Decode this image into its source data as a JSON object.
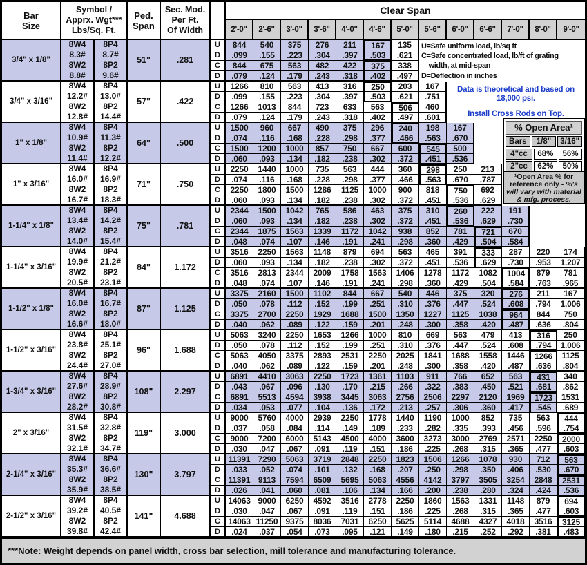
{
  "header": {
    "bar_size": "Bar\nSize",
    "symbol": "Symbol /\nApprx. Wgt***\nLbs/Sq. Ft.",
    "ped_span": "Ped.\nSpan",
    "sec_mod": "Sec. Mod.\nPer Ft.\nOf Width",
    "clear_span": "Clear Span",
    "spans": [
      "2'-0\"",
      "2'-6\"",
      "3'-0\"",
      "3'-6\"",
      "4'-0\"",
      "4'-6\"",
      "5'-0\"",
      "5'-6\"",
      "6'-0\"",
      "6'-6\"",
      "7'-0\"",
      "8'-0\"",
      "9'-0\""
    ]
  },
  "legend": {
    "text": "U=Safe uniform load, lb/sq ft\nC=Safe concentrated load, lb/ft of grating\n    width, at mid-span\nD=Deflection in inches"
  },
  "notes": {
    "line1": "Data is theoretical and based on\n18,000 psi.",
    "line2": "Install Cross Rods on Top."
  },
  "open_area": {
    "title": "% Open Area¹",
    "col_headers": [
      "Bars",
      "1/8\"",
      "3/16\""
    ],
    "rows": [
      [
        "4\"cc",
        "68%",
        "56%"
      ],
      [
        "2\"cc",
        "62%",
        "50%"
      ]
    ],
    "footnote_normal": "¹Open Area % for reference only - ",
    "footnote_italic": "%'s will vary with material & mfg. process."
  },
  "footer_note": "***Note: Weight depends on panel width, cross bar selection, mill tolerance and manufacturing tolerance.",
  "row_labels": [
    "U",
    "D",
    "C",
    "D"
  ],
  "colors": {
    "lavender": "#c6cae8",
    "header_gray": "#d2d2d2",
    "note_blue": "#1c3ecb",
    "grid_black": "#000000"
  },
  "blocks": [
    {
      "bar_size": "3/4\" x 1/8\"",
      "sym_w": [
        "8W4",
        "8.3#",
        "8W2",
        "8.8#"
      ],
      "sym_p": [
        "8P4",
        "8.7#",
        "8P2",
        "9.6#"
      ],
      "ped_span": "51\"",
      "sec_mod": ".281",
      "shaded": true,
      "heavy_ud": 5,
      "heavy_cd": 5,
      "white_from": 6,
      "rows": {
        "u": [
          "844",
          "540",
          "375",
          "276",
          "211",
          "167",
          "135"
        ],
        "d1": [
          ".099",
          ".155",
          ".223",
          ".304",
          ".397",
          ".503",
          ".621"
        ],
        "c": [
          "844",
          "675",
          "563",
          "482",
          "422",
          "375",
          "338"
        ],
        "d2": [
          ".079",
          ".124",
          ".179",
          ".243",
          ".318",
          ".402",
          ".497"
        ]
      }
    },
    {
      "bar_size": "3/4\" x 3/16\"",
      "sym_w": [
        "8W4",
        "12.2#",
        "8W2",
        "12.8#"
      ],
      "sym_p": [
        "8P4",
        "13.0#",
        "8P2",
        "14.4#"
      ],
      "ped_span": "57\"",
      "sec_mod": ".422",
      "shaded": false,
      "heavy_ud": 5,
      "heavy_cd": 6,
      "rows": {
        "u": [
          "1266",
          "810",
          "563",
          "413",
          "316",
          "250",
          "203",
          "167"
        ],
        "d1": [
          ".099",
          ".155",
          ".223",
          ".304",
          ".397",
          ".503",
          ".621",
          ".751"
        ],
        "c": [
          "1266",
          "1013",
          "844",
          "723",
          "633",
          "563",
          "506",
          "460"
        ],
        "d2": [
          ".079",
          ".124",
          ".179",
          ".243",
          ".318",
          ".402",
          ".497",
          ".601"
        ]
      }
    },
    {
      "bar_size": "1\" x 1/8\"",
      "sym_w": [
        "8W4",
        "10.9#",
        "8W2",
        "11.4#"
      ],
      "sym_p": [
        "8P4",
        "11.3#",
        "8P2",
        "12.2#"
      ],
      "ped_span": "64\"",
      "sec_mod": ".500",
      "shaded": true,
      "heavy_ud": 6,
      "heavy_cd": 7,
      "rows": {
        "u": [
          "1500",
          "960",
          "667",
          "490",
          "375",
          "296",
          "240",
          "198",
          "167"
        ],
        "d1": [
          ".074",
          ".116",
          ".168",
          ".228",
          ".298",
          ".377",
          ".466",
          ".563",
          ".670"
        ],
        "c": [
          "1500",
          "1200",
          "1000",
          "857",
          "750",
          "667",
          "600",
          "545",
          "500"
        ],
        "d2": [
          ".060",
          ".093",
          ".134",
          ".182",
          ".238",
          ".302",
          ".372",
          ".451",
          ".536"
        ]
      }
    },
    {
      "bar_size": "1\" x 3/16\"",
      "sym_w": [
        "8W4",
        "16.0#",
        "8W2",
        "16.7#"
      ],
      "sym_p": [
        "8P4",
        "16.9#",
        "8P2",
        "18.3#"
      ],
      "ped_span": "71\"",
      "sec_mod": ".750",
      "shaded": false,
      "heavy_ud": 7,
      "heavy_cd": 8,
      "rows": {
        "u": [
          "2250",
          "1440",
          "1000",
          "735",
          "563",
          "444",
          "360",
          "298",
          "250",
          "213"
        ],
        "d1": [
          ".074",
          ".116",
          ".168",
          ".228",
          ".298",
          ".377",
          ".466",
          ".563",
          ".670",
          ".787"
        ],
        "c": [
          "2250",
          "1800",
          "1500",
          "1286",
          "1125",
          "1000",
          "900",
          "818",
          "750",
          "692"
        ],
        "d2": [
          ".060",
          ".093",
          ".134",
          ".182",
          ".238",
          ".302",
          ".372",
          ".451",
          ".536",
          ".629"
        ]
      }
    },
    {
      "bar_size": "1-1/4\" x 1/8\"",
      "sym_w": [
        "8W4",
        "13.4#",
        "8W2",
        "14.0#"
      ],
      "sym_p": [
        "8P4",
        "14.2#",
        "8P2",
        "15.4#"
      ],
      "ped_span": "75\"",
      "sec_mod": ".781",
      "shaded": true,
      "heavy_ud": 8,
      "heavy_cd": 9,
      "rows": {
        "u": [
          "2344",
          "1500",
          "1042",
          "765",
          "586",
          "463",
          "375",
          "310",
          "260",
          "222",
          "191"
        ],
        "d1": [
          ".060",
          ".093",
          ".134",
          ".182",
          ".238",
          ".302",
          ".372",
          ".451",
          ".536",
          ".629",
          ".730"
        ],
        "c": [
          "2344",
          "1875",
          "1563",
          "1339",
          "1172",
          "1042",
          "938",
          "852",
          "781",
          "721",
          "670"
        ],
        "d2": [
          ".048",
          ".074",
          ".107",
          ".146",
          ".191",
          ".241",
          ".298",
          ".360",
          ".429",
          ".504",
          ".584"
        ]
      }
    },
    {
      "bar_size": "1-1/4\" x 3/16\"",
      "sym_w": [
        "8W4",
        "19.9#",
        "8W2",
        "20.5#"
      ],
      "sym_p": [
        "8P4",
        "21.2#",
        "8P2",
        "23.1#"
      ],
      "ped_span": "84\"",
      "sec_mod": "1.172",
      "shaded": false,
      "heavy_ud": 9,
      "heavy_cd": 10,
      "rows": {
        "u": [
          "3516",
          "2250",
          "1563",
          "1148",
          "879",
          "694",
          "563",
          "465",
          "391",
          "333",
          "287",
          "220",
          "174"
        ],
        "d1": [
          ".060",
          ".093",
          ".134",
          ".182",
          ".238",
          ".302",
          ".372",
          ".451",
          ".536",
          ".629",
          ".730",
          ".953",
          "1.207"
        ],
        "c": [
          "3516",
          "2813",
          "2344",
          "2009",
          "1758",
          "1563",
          "1406",
          "1278",
          "1172",
          "1082",
          "1004",
          "879",
          "781"
        ],
        "d2": [
          ".048",
          ".074",
          ".107",
          ".146",
          ".191",
          ".241",
          ".298",
          ".360",
          ".429",
          ".504",
          ".584",
          ".763",
          ".965"
        ]
      }
    },
    {
      "bar_size": "1-1/2\" x 1/8\"",
      "sym_w": [
        "8W4",
        "16.0#",
        "8W2",
        "16.6#"
      ],
      "sym_p": [
        "8P4",
        "16.7#",
        "8P2",
        "18.0#"
      ],
      "ped_span": "87\"",
      "sec_mod": "1.125",
      "shaded": true,
      "heavy_ud": 10,
      "heavy_cd": 10,
      "white_from": 11,
      "rows": {
        "u": [
          "3375",
          "2160",
          "1500",
          "1102",
          "844",
          "667",
          "540",
          "446",
          "375",
          "320",
          "276",
          "211",
          "167"
        ],
        "d1": [
          ".050",
          ".078",
          ".112",
          ".152",
          ".199",
          ".251",
          ".310",
          ".376",
          ".447",
          ".524",
          ".608",
          ".794",
          "1.006"
        ],
        "c": [
          "3375",
          "2700",
          "2250",
          "1929",
          "1688",
          "1500",
          "1350",
          "1227",
          "1125",
          "1038",
          "964",
          "844",
          "750"
        ],
        "d2": [
          ".040",
          ".062",
          ".089",
          ".122",
          ".159",
          ".201",
          ".248",
          ".300",
          ".358",
          ".420",
          ".487",
          ".636",
          ".804"
        ]
      }
    },
    {
      "bar_size": "1-1/2\" x 3/16\"",
      "sym_w": [
        "8W4",
        "23.8#",
        "8W2",
        "24.4#"
      ],
      "sym_p": [
        "8P4",
        "25.1#",
        "8P2",
        "27.0#"
      ],
      "ped_span": "96\"",
      "sec_mod": "1.688",
      "shaded": false,
      "heavy_ud": 11,
      "heavy_cd": 11,
      "rows": {
        "u": [
          "5063",
          "3240",
          "2250",
          "1653",
          "1266",
          "1000",
          "810",
          "669",
          "563",
          "479",
          "413",
          "316",
          "250"
        ],
        "d1": [
          ".050",
          ".078",
          ".112",
          ".152",
          ".199",
          ".251",
          ".310",
          ".376",
          ".447",
          ".524",
          ".608",
          ".794",
          "1.006"
        ],
        "c": [
          "5063",
          "4050",
          "3375",
          "2893",
          "2531",
          "2250",
          "2025",
          "1841",
          "1688",
          "1558",
          "1446",
          "1266",
          "1125"
        ],
        "d2": [
          ".040",
          ".062",
          ".089",
          ".122",
          ".159",
          ".201",
          ".248",
          ".300",
          ".358",
          ".420",
          ".487",
          ".636",
          ".804"
        ]
      }
    },
    {
      "bar_size": "1-3/4\" x 3/16\"",
      "sym_w": [
        "8W4",
        "27.6#",
        "8W2",
        "28.2#"
      ],
      "sym_p": [
        "8P4",
        "28.9#",
        "8P2",
        "30.8#"
      ],
      "ped_span": "108\"",
      "sec_mod": "2.297",
      "shaded": true,
      "heavy_ud": 11,
      "heavy_cd": 11,
      "white_from": 12,
      "rows": {
        "u": [
          "6891",
          "4410",
          "3063",
          "2250",
          "1723",
          "1361",
          "1103",
          "911",
          "766",
          "652",
          "563",
          "431",
          "340"
        ],
        "d1": [
          ".043",
          ".067",
          ".096",
          ".130",
          ".170",
          ".215",
          ".266",
          ".322",
          ".383",
          ".450",
          ".521",
          ".681",
          ".862"
        ],
        "c": [
          "6891",
          "5513",
          "4594",
          "3938",
          "3445",
          "3063",
          "2756",
          "2506",
          "2297",
          "2120",
          "1969",
          "1723",
          "1531"
        ],
        "d2": [
          ".034",
          ".053",
          ".077",
          ".104",
          ".136",
          ".172",
          ".213",
          ".257",
          ".306",
          ".360",
          ".417",
          ".545",
          ".689"
        ]
      }
    },
    {
      "bar_size": "2\" x 3/16\"",
      "sym_w": [
        "8W4",
        "31.5#",
        "8W2",
        "32.1#"
      ],
      "sym_p": [
        "8P4",
        "32.8#",
        "8P2",
        "34.7#"
      ],
      "ped_span": "119\"",
      "sec_mod": "3.000",
      "shaded": false,
      "heavy_ud": 12,
      "heavy_cd": 12,
      "rows": {
        "u": [
          "9000",
          "5760",
          "4000",
          "2939",
          "2250",
          "1778",
          "1440",
          "1190",
          "1000",
          "852",
          "735",
          "563",
          "444"
        ],
        "d1": [
          ".037",
          ".058",
          ".084",
          ".114",
          ".149",
          ".189",
          ".233",
          ".282",
          ".335",
          ".393",
          ".456",
          ".596",
          ".754"
        ],
        "c": [
          "9000",
          "7200",
          "6000",
          "5143",
          "4500",
          "4000",
          "3600",
          "3273",
          "3000",
          "2769",
          "2571",
          "2250",
          "2000"
        ],
        "d2": [
          ".030",
          ".047",
          ".067",
          ".091",
          ".119",
          ".151",
          ".186",
          ".225",
          ".268",
          ".315",
          ".365",
          ".477",
          ".603"
        ]
      }
    },
    {
      "bar_size": "2-1/4\" x 3/16\"",
      "sym_w": [
        "8W4",
        "35.3#",
        "8W2",
        "35.9#"
      ],
      "sym_p": [
        "8P4",
        "36.6#",
        "8P2",
        "38.5#"
      ],
      "ped_span": "130\"",
      "sec_mod": "3.797",
      "shaded": true,
      "heavy_ud": 12,
      "heavy_cd": 12,
      "rows": {
        "u": [
          "11391",
          "7290",
          "5063",
          "3719",
          "2848",
          "2250",
          "1823",
          "1506",
          "1266",
          "1078",
          "930",
          "712",
          "563"
        ],
        "d1": [
          ".033",
          ".052",
          ".074",
          ".101",
          ".132",
          ".168",
          ".207",
          ".250",
          ".298",
          ".350",
          ".406",
          ".530",
          ".670"
        ],
        "c": [
          "11391",
          "9113",
          "7594",
          "6509",
          "5695",
          "5063",
          "4556",
          "4142",
          "3797",
          "3505",
          "3254",
          "2848",
          "2531"
        ],
        "d2": [
          ".026",
          ".041",
          ".060",
          ".081",
          ".106",
          ".134",
          ".166",
          ".200",
          ".238",
          ".280",
          ".324",
          ".424",
          ".536"
        ]
      }
    },
    {
      "bar_size": "2-1/2\" x 3/16\"",
      "sym_w": [
        "8W4",
        "39.2#",
        "8W2",
        "39.8#"
      ],
      "sym_p": [
        "8P4",
        "40.5#",
        "8P2",
        "42.4#"
      ],
      "ped_span": "141\"",
      "sec_mod": "4.688",
      "shaded": false,
      "heavy_ud": 12,
      "heavy_cd": 12,
      "rows": {
        "u": [
          "14063",
          "9000",
          "6250",
          "4592",
          "3516",
          "2778",
          "2250",
          "1860",
          "1563",
          "1331",
          "1148",
          "879",
          "694"
        ],
        "d1": [
          ".030",
          ".047",
          ".067",
          ".091",
          ".119",
          ".151",
          ".186",
          ".225",
          ".268",
          ".315",
          ".365",
          ".477",
          ".603"
        ],
        "c": [
          "14063",
          "11250",
          "9375",
          "8036",
          "7031",
          "6250",
          "5625",
          "5114",
          "4688",
          "4327",
          "4018",
          "3516",
          "3125"
        ],
        "d2": [
          ".024",
          ".037",
          ".054",
          ".073",
          ".095",
          ".121",
          ".149",
          ".180",
          ".215",
          ".252",
          ".292",
          ".381",
          ".483"
        ]
      }
    }
  ]
}
